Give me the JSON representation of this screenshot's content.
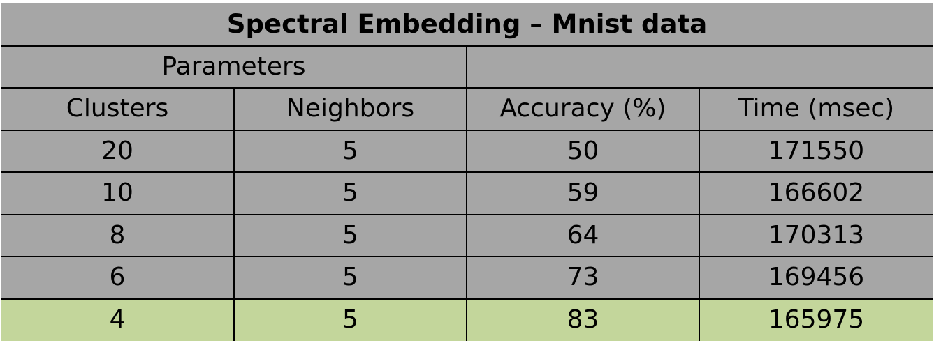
{
  "table": {
    "title": "Spectral Embedding – Mnist data",
    "group_header": "Parameters",
    "columns": [
      "Clusters",
      "Neighbors",
      "Accuracy (%)",
      "Time (msec)"
    ],
    "rows": [
      [
        "20",
        "5",
        "50",
        "171550"
      ],
      [
        "10",
        "5",
        "59",
        "166602"
      ],
      [
        "8",
        "5",
        "64",
        "170313"
      ],
      [
        "6",
        "5",
        "73",
        "169456"
      ],
      [
        "4",
        "5",
        "83",
        "165975"
      ]
    ],
    "highlight_row_color": "#c3d69b",
    "cell_color": "#a6a6a6"
  }
}
